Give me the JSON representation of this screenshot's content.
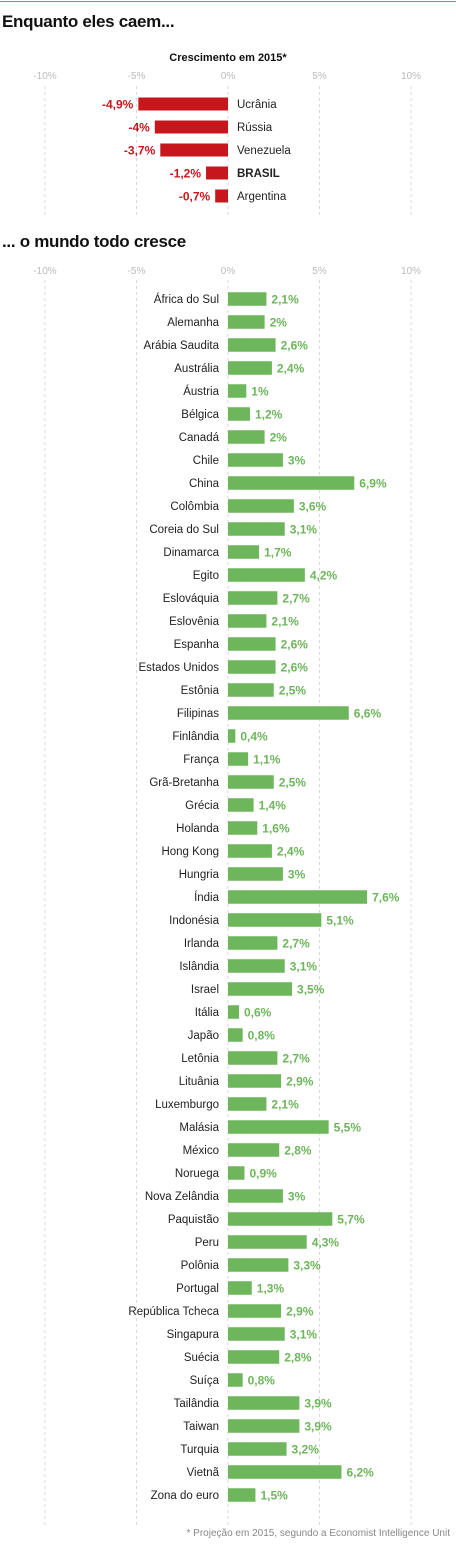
{
  "colors": {
    "negative": "#c8161d",
    "positive": "#6db65b",
    "grid": "#d9d9d9",
    "axis_text": "#bbbbbb"
  },
  "header": {
    "title_top": "Enquanto eles caem...",
    "chart_subtitle": "Crescimento em 2015*",
    "title_bottom": "... o mundo todo cresce"
  },
  "footnote": "* Projeção em 2015, segundo a Economist Intelligence Unit",
  "chart_data": [
    {
      "type": "bar",
      "orientation": "horizontal",
      "title": "Crescimento em 2015*",
      "xlim": [
        -10,
        10
      ],
      "ticks": [
        -10,
        -5,
        0,
        5,
        10
      ],
      "tick_labels": [
        "-10%",
        "-5%",
        "0%",
        "5%",
        "10%"
      ],
      "grid": true,
      "categories": [
        "Ucrânia",
        "Rússia",
        "Venezuela",
        "BRASIL",
        "Argentina"
      ],
      "values": [
        -4.9,
        -4,
        -3.7,
        -1.2,
        -0.7
      ],
      "value_labels": [
        "-4,9%",
        "-4%",
        "-3,7%",
        "-1,2%",
        "-0,7%"
      ],
      "highlight": "BRASIL",
      "color": "#c8161d"
    },
    {
      "type": "bar",
      "orientation": "horizontal",
      "xlim": [
        -10,
        10
      ],
      "ticks": [
        -10,
        -5,
        0,
        5,
        10
      ],
      "tick_labels": [
        "-10%",
        "-5%",
        "0%",
        "5%",
        "10%"
      ],
      "grid": true,
      "categories": [
        "África do Sul",
        "Alemanha",
        "Arábia Saudita",
        "Austrália",
        "Áustria",
        "Bélgica",
        "Canadá",
        "Chile",
        "China",
        "Colômbia",
        "Coreia do Sul",
        "Dinamarca",
        "Egito",
        "Eslováquia",
        "Eslovênia",
        "Espanha",
        "Estados Unidos",
        "Estônia",
        "Filipinas",
        "Finlândia",
        "França",
        "Grã-Bretanha",
        "Grécia",
        "Holanda",
        "Hong Kong",
        "Hungria",
        "Índia",
        "Indonésia",
        "Irlanda",
        "Islândia",
        "Israel",
        "Itália",
        "Japão",
        "Letônia",
        "Lituânia",
        "Luxemburgo",
        "Malásia",
        "México",
        "Noruega",
        "Nova Zelândia",
        "Paquistão",
        "Peru",
        "Polônia",
        "Portugal",
        "República Tcheca",
        "Singapura",
        "Suécia",
        "Suíça",
        "Tailândia",
        "Taiwan",
        "Turquia",
        "Vietnã",
        "Zona do euro"
      ],
      "values": [
        2.1,
        2,
        2.6,
        2.4,
        1,
        1.2,
        2,
        3,
        6.9,
        3.6,
        3.1,
        1.7,
        4.2,
        2.7,
        2.1,
        2.6,
        2.6,
        2.5,
        6.6,
        0.4,
        1.1,
        2.5,
        1.4,
        1.6,
        2.4,
        3,
        7.6,
        5.1,
        2.7,
        3.1,
        3.5,
        0.6,
        0.8,
        2.7,
        2.9,
        2.1,
        5.5,
        2.8,
        0.9,
        3,
        5.7,
        4.3,
        3.3,
        1.3,
        2.9,
        3.1,
        2.8,
        0.8,
        3.9,
        3.9,
        3.2,
        6.2,
        1.5
      ],
      "value_labels": [
        "2,1%",
        "2%",
        "2,6%",
        "2,4%",
        "1%",
        "1,2%",
        "2%",
        "3%",
        "6,9%",
        "3,6%",
        "3,1%",
        "1,7%",
        "4,2%",
        "2,7%",
        "2,1%",
        "2,6%",
        "2,6%",
        "2,5%",
        "6,6%",
        "0,4%",
        "1,1%",
        "2,5%",
        "1,4%",
        "1,6%",
        "2,4%",
        "3%",
        "7,6%",
        "5,1%",
        "2,7%",
        "3,1%",
        "3,5%",
        "0,6%",
        "0,8%",
        "2,7%",
        "2,9%",
        "2,1%",
        "5,5%",
        "2,8%",
        "0,9%",
        "3%",
        "5,7%",
        "4,3%",
        "3,3%",
        "1,3%",
        "2,9%",
        "3,1%",
        "2,8%",
        "0,8%",
        "3,9%",
        "3,9%",
        "3,2%",
        "6,2%",
        "1,5%"
      ],
      "color": "#6db65b"
    }
  ]
}
